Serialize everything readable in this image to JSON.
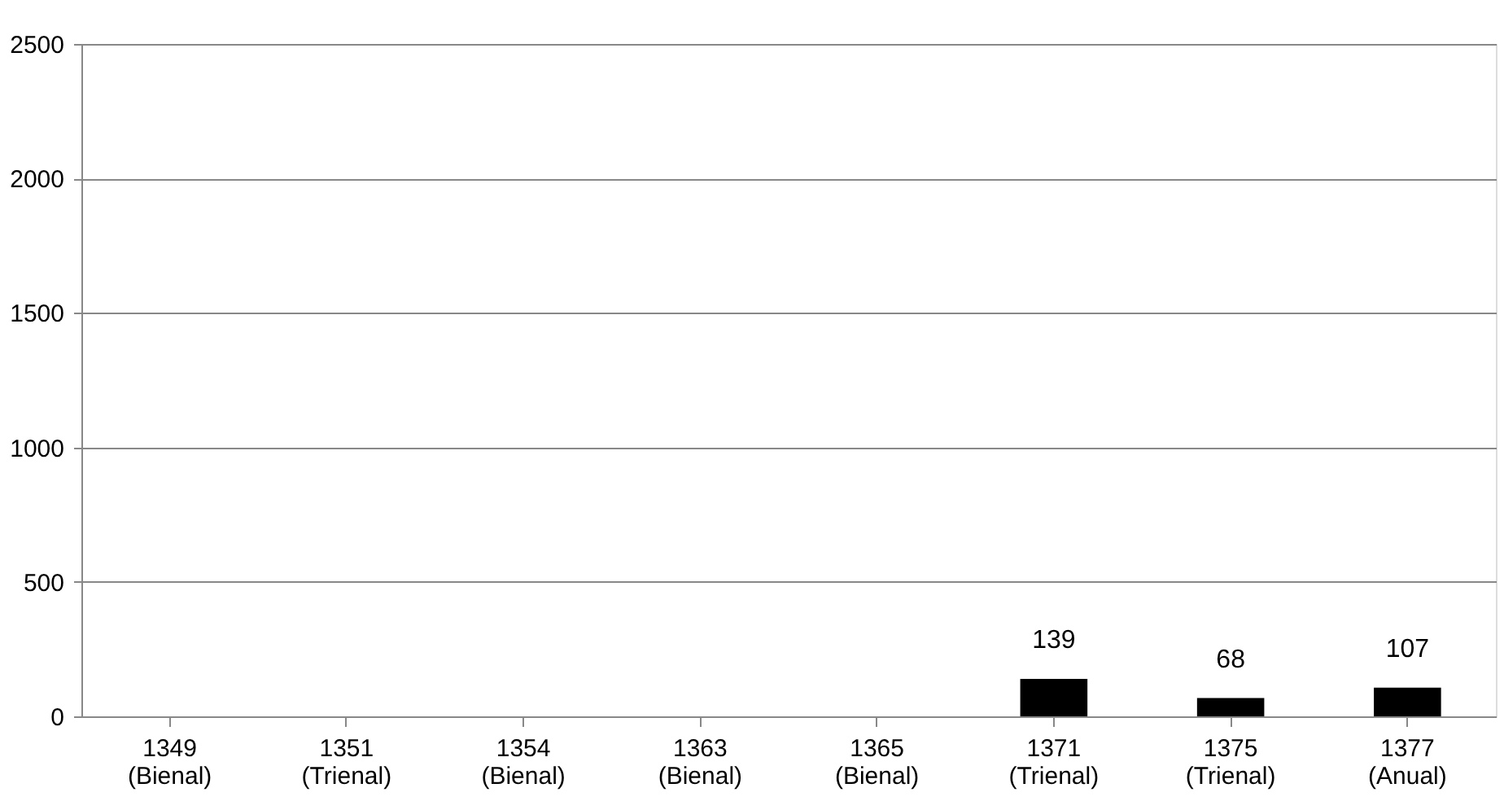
{
  "chart_data": {
    "type": "bar",
    "categories": [
      "1349 (Bienal)",
      "1351 (Trienal)",
      "1354 (Bienal)",
      "1363 (Bienal)",
      "1365 (Bienal)",
      "1371 (Trienal)",
      "1375 (Trienal)",
      "1377 (Anual)"
    ],
    "values": [
      null,
      null,
      null,
      null,
      null,
      139,
      68,
      107
    ],
    "color": "#000000",
    "ylim": [
      0,
      2500
    ],
    "yticks": [
      0,
      500,
      1000,
      1500,
      2000,
      2500
    ],
    "grid": "y",
    "data_labels": true
  }
}
